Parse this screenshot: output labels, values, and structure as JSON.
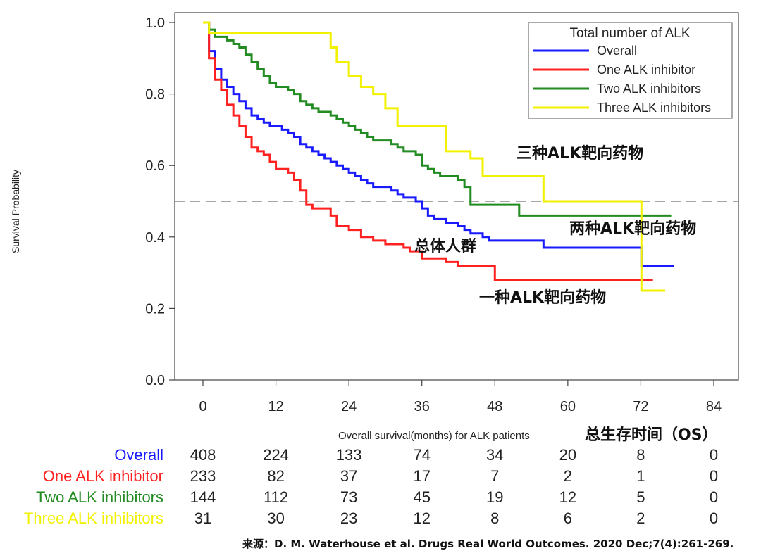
{
  "chart_data": {
    "type": "line",
    "title": "",
    "ylabel": "Survival Probability",
    "xlabel": "Overall survival(months) for ALK patients",
    "xlabel_cn": "总生存时间（OS）",
    "xlim": [
      -4,
      88
    ],
    "ylim": [
      0,
      1.0
    ],
    "xticks": [
      "0",
      "12",
      "24",
      "36",
      "48",
      "60",
      "72",
      "84"
    ],
    "xtick_values": [
      0,
      12,
      24,
      36,
      48,
      60,
      72,
      84
    ],
    "yticks": [
      "0.0",
      "0.2",
      "0.4",
      "0.6",
      "0.8",
      "1.0"
    ],
    "ytick_values": [
      0,
      0.2,
      0.4,
      0.6,
      0.8,
      1.0
    ],
    "reference_line": 0.5,
    "legend": {
      "title": "Total number of ALK",
      "placement": "top-right"
    },
    "series": [
      {
        "name": "Overall",
        "color": "#1a1aff",
        "x": [
          0,
          1,
          2,
          3,
          4,
          5,
          6,
          7,
          8,
          9,
          10,
          11,
          12,
          13,
          14,
          15,
          16,
          17,
          18,
          19,
          20,
          21,
          22,
          23,
          24,
          25,
          26,
          27,
          28,
          29,
          30,
          31,
          32,
          33,
          34,
          35,
          36,
          37,
          38,
          39,
          40,
          41,
          42,
          43,
          44,
          45,
          46,
          47,
          48,
          56,
          72,
          72.1,
          77.5
        ],
        "y": [
          1.0,
          0.92,
          0.87,
          0.84,
          0.82,
          0.8,
          0.78,
          0.76,
          0.74,
          0.73,
          0.72,
          0.71,
          0.71,
          0.7,
          0.69,
          0.68,
          0.66,
          0.65,
          0.64,
          0.63,
          0.62,
          0.61,
          0.6,
          0.59,
          0.58,
          0.57,
          0.56,
          0.55,
          0.54,
          0.54,
          0.54,
          0.53,
          0.52,
          0.51,
          0.51,
          0.5,
          0.48,
          0.46,
          0.45,
          0.45,
          0.44,
          0.44,
          0.43,
          0.42,
          0.41,
          0.41,
          0.4,
          0.39,
          0.39,
          0.37,
          0.37,
          0.32,
          0.32
        ]
      },
      {
        "name": "One ALK inhibitor",
        "color": "#ff2020",
        "x": [
          0,
          1,
          2,
          3,
          4,
          5,
          6,
          7,
          8,
          9,
          10,
          11,
          12,
          13,
          14,
          15,
          16,
          17,
          18,
          20,
          21,
          22,
          24,
          26,
          28,
          30,
          32,
          33,
          34,
          35,
          36,
          40,
          42,
          46,
          47,
          48,
          56,
          64,
          74
        ],
        "y": [
          1.0,
          0.9,
          0.84,
          0.81,
          0.77,
          0.74,
          0.71,
          0.68,
          0.65,
          0.64,
          0.63,
          0.61,
          0.59,
          0.59,
          0.58,
          0.56,
          0.53,
          0.49,
          0.48,
          0.48,
          0.46,
          0.43,
          0.42,
          0.4,
          0.39,
          0.38,
          0.38,
          0.37,
          0.36,
          0.36,
          0.34,
          0.33,
          0.32,
          0.32,
          0.32,
          0.28,
          0.28,
          0.28,
          0.28
        ]
      },
      {
        "name": "Two ALK inhibitors",
        "color": "#228b22",
        "x": [
          0,
          1,
          2,
          3,
          4,
          5,
          6,
          7,
          8,
          9,
          10,
          11,
          12,
          13,
          14,
          15,
          16,
          17,
          18,
          19,
          20,
          21,
          22,
          23,
          24,
          25,
          26,
          27,
          28,
          29,
          30,
          31,
          32,
          33,
          34,
          35,
          36,
          37,
          38,
          39,
          40,
          41,
          42,
          43,
          44,
          48,
          52,
          60,
          72,
          77
        ],
        "y": [
          1.0,
          0.98,
          0.96,
          0.96,
          0.95,
          0.94,
          0.93,
          0.91,
          0.89,
          0.87,
          0.85,
          0.83,
          0.82,
          0.82,
          0.81,
          0.8,
          0.78,
          0.77,
          0.76,
          0.75,
          0.75,
          0.74,
          0.73,
          0.72,
          0.71,
          0.7,
          0.69,
          0.68,
          0.67,
          0.67,
          0.67,
          0.66,
          0.65,
          0.64,
          0.64,
          0.63,
          0.6,
          0.59,
          0.58,
          0.57,
          0.57,
          0.57,
          0.56,
          0.54,
          0.49,
          0.49,
          0.46,
          0.46,
          0.46,
          0.46
        ]
      },
      {
        "name": "Three ALK inhibitors",
        "color": "#f2f200",
        "x": [
          0,
          1,
          8,
          12,
          20,
          21,
          22,
          24,
          26,
          28,
          30,
          32,
          34,
          36,
          40,
          42,
          44,
          46,
          48,
          56,
          60,
          66,
          72,
          72.1,
          76
        ],
        "y": [
          1.0,
          0.97,
          0.97,
          0.97,
          0.97,
          0.93,
          0.89,
          0.85,
          0.82,
          0.8,
          0.76,
          0.71,
          0.71,
          0.71,
          0.64,
          0.64,
          0.62,
          0.57,
          0.57,
          0.5,
          0.5,
          0.5,
          0.5,
          0.25,
          0.25
        ]
      }
    ],
    "annotations": [
      {
        "text": "三种ALK靶向药物",
        "series": "Three ALK inhibitors"
      },
      {
        "text": "两种ALK靶向药物",
        "series": "Two ALK inhibitors"
      },
      {
        "text": "总体人群",
        "series": "Overall"
      },
      {
        "text": "一种ALK靶向药物",
        "series": "One ALK inhibitor"
      }
    ],
    "risk_table": {
      "rows": [
        {
          "label": "Overall",
          "color": "#1a1aff",
          "counts": [
            "408",
            "224",
            "133",
            "74",
            "34",
            "20",
            "8",
            "0"
          ]
        },
        {
          "label": "One ALK inhibitor",
          "color": "#ff2020",
          "counts": [
            "233",
            "82",
            "37",
            "17",
            "7",
            "2",
            "1",
            "0"
          ]
        },
        {
          "label": "Two ALK inhibitors",
          "color": "#228b22",
          "counts": [
            "144",
            "112",
            "73",
            "45",
            "19",
            "12",
            "5",
            "0"
          ]
        },
        {
          "label": "Three ALK inhibitors",
          "color": "#f2f200",
          "counts": [
            "31",
            "30",
            "23",
            "12",
            "8",
            "6",
            "2",
            "0"
          ]
        }
      ]
    }
  },
  "source": "来源：D. M. Waterhouse et al. Drugs Real World Outcomes. 2020 Dec;7(4):261-269."
}
